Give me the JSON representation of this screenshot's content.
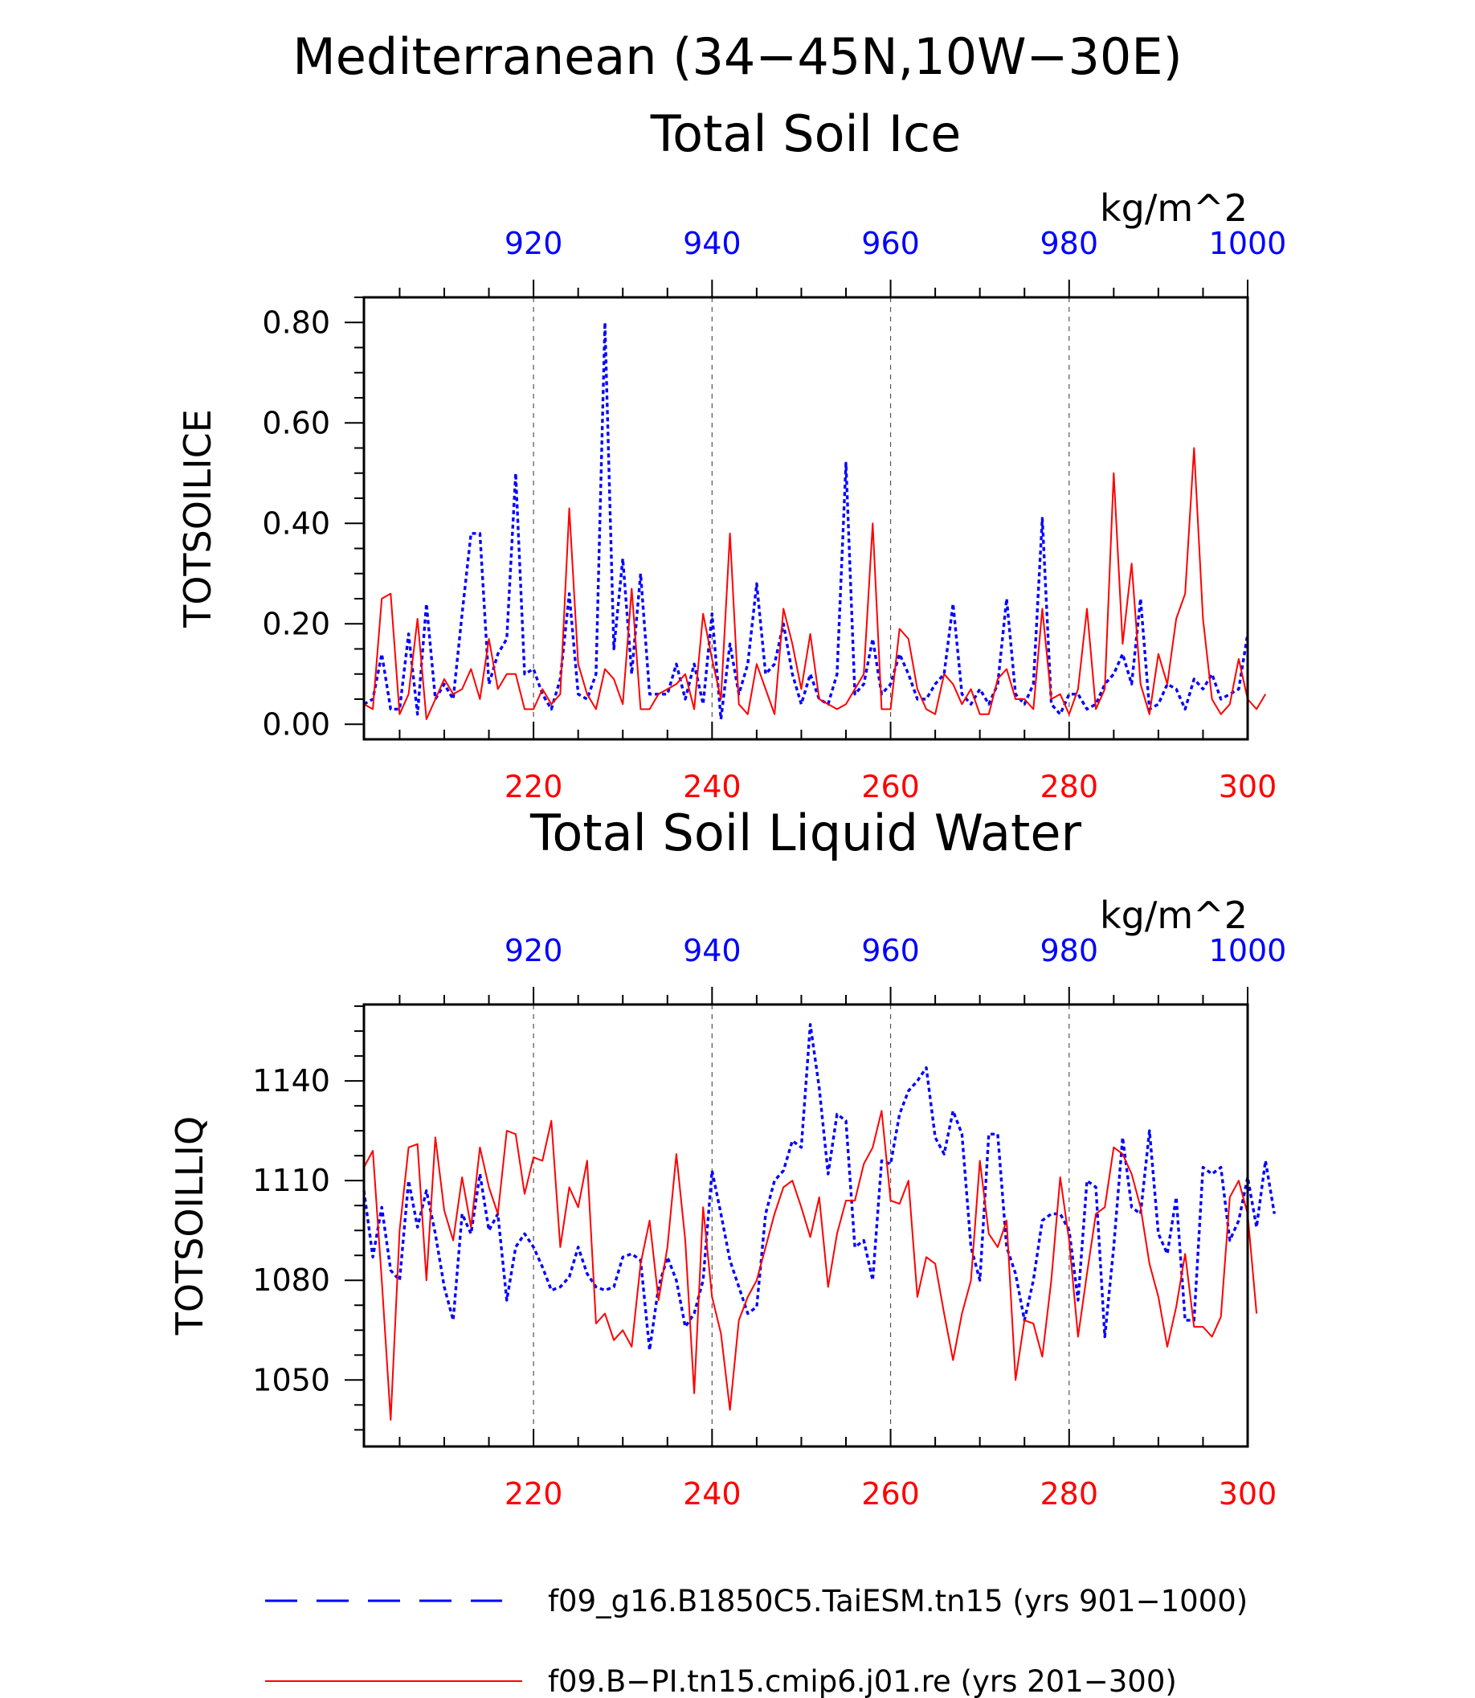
{
  "page": {
    "title_line1": "Mediterranean (34−45N,10W−30E)"
  },
  "colors": {
    "series_a": "#0000ff",
    "series_b": "#ff0000",
    "axis": "#000000",
    "grid": "#555555"
  },
  "chart_data": [
    {
      "type": "line",
      "title": "Total Soil Ice",
      "ylabel": "TOTSOILICE",
      "units": "kg/m^2",
      "ylim": [
        -0.03,
        0.85
      ],
      "yticks": [
        0.0,
        0.2,
        0.4,
        0.6,
        0.8
      ],
      "ytick_labels": [
        "0.00",
        "0.20",
        "0.40",
        "0.60",
        "0.80"
      ],
      "top_axis": {
        "color": "#0000ff",
        "range": [
          901,
          1000
        ],
        "ticks": [
          920,
          940,
          960,
          980,
          1000
        ],
        "tick_labels": [
          "920",
          "940",
          "960",
          "980",
          "1000"
        ]
      },
      "bottom_axis": {
        "color": "#ff0000",
        "range": [
          201,
          300
        ],
        "ticks": [
          220,
          240,
          260,
          280,
          300
        ],
        "tick_labels": [
          "220",
          "240",
          "260",
          "280",
          "300"
        ]
      },
      "grid": "vertical dashed at major ticks",
      "series": [
        {
          "axis": "top",
          "color": "#0000ff",
          "style": "dotted",
          "values": [
            0.04,
            0.05,
            0.14,
            0.03,
            0.03,
            0.18,
            0.02,
            0.24,
            0.05,
            0.08,
            0.05,
            0.22,
            0.38,
            0.38,
            0.08,
            0.14,
            0.17,
            0.5,
            0.1,
            0.11,
            0.06,
            0.03,
            0.09,
            0.26,
            0.06,
            0.05,
            0.1,
            0.8,
            0.15,
            0.33,
            0.1,
            0.3,
            0.06,
            0.06,
            0.06,
            0.12,
            0.05,
            0.12,
            0.04,
            0.22,
            0.01,
            0.16,
            0.06,
            0.12,
            0.28,
            0.1,
            0.12,
            0.2,
            0.1,
            0.04,
            0.1,
            0.05,
            0.04,
            0.1,
            0.52,
            0.06,
            0.08,
            0.17,
            0.06,
            0.08,
            0.14,
            0.1,
            0.05,
            0.05,
            0.08,
            0.1,
            0.24,
            0.06,
            0.04,
            0.07,
            0.04,
            0.08,
            0.25,
            0.06,
            0.04,
            0.08,
            0.41,
            0.04,
            0.02,
            0.06,
            0.06,
            0.03,
            0.04,
            0.08,
            0.1,
            0.14,
            0.08,
            0.25,
            0.03,
            0.04,
            0.08,
            0.07,
            0.03,
            0.09,
            0.07,
            0.1,
            0.05,
            0.06,
            0.07,
            0.18
          ]
        },
        {
          "axis": "bottom",
          "color": "#ff0000",
          "style": "solid",
          "values": [
            0.04,
            0.03,
            0.25,
            0.26,
            0.02,
            0.06,
            0.21,
            0.01,
            0.05,
            0.09,
            0.06,
            0.07,
            0.11,
            0.05,
            0.17,
            0.07,
            0.1,
            0.1,
            0.03,
            0.03,
            0.07,
            0.04,
            0.06,
            0.43,
            0.12,
            0.06,
            0.03,
            0.11,
            0.09,
            0.04,
            0.27,
            0.03,
            0.03,
            0.06,
            0.07,
            0.08,
            0.1,
            0.03,
            0.22,
            0.13,
            0.05,
            0.38,
            0.04,
            0.02,
            0.12,
            0.07,
            0.02,
            0.23,
            0.16,
            0.07,
            0.18,
            0.05,
            0.04,
            0.03,
            0.04,
            0.07,
            0.1,
            0.4,
            0.03,
            0.03,
            0.19,
            0.17,
            0.07,
            0.03,
            0.02,
            0.1,
            0.08,
            0.04,
            0.07,
            0.02,
            0.02,
            0.09,
            0.11,
            0.05,
            0.05,
            0.03,
            0.23,
            0.05,
            0.06,
            0.02,
            0.07,
            0.23,
            0.03,
            0.07,
            0.5,
            0.16,
            0.32,
            0.08,
            0.02,
            0.14,
            0.08,
            0.21,
            0.26,
            0.55,
            0.21,
            0.05,
            0.02,
            0.04,
            0.13,
            0.05,
            0.03,
            0.06
          ]
        }
      ]
    },
    {
      "type": "line",
      "title": "Total Soil Liquid Water",
      "ylabel": "TOTSOILLIQ",
      "units": "kg/m^2",
      "ylim": [
        1030,
        1163
      ],
      "yticks": [
        1050,
        1080,
        1110,
        1140
      ],
      "ytick_labels": [
        "1050",
        "1080",
        "1110",
        "1140"
      ],
      "top_axis": {
        "color": "#0000ff",
        "range": [
          901,
          1000
        ],
        "ticks": [
          920,
          940,
          960,
          980,
          1000
        ],
        "tick_labels": [
          "920",
          "940",
          "960",
          "980",
          "1000"
        ]
      },
      "bottom_axis": {
        "color": "#ff0000",
        "range": [
          201,
          300
        ],
        "ticks": [
          220,
          240,
          260,
          280,
          300
        ],
        "tick_labels": [
          "220",
          "240",
          "260",
          "280",
          "300"
        ]
      },
      "grid": "vertical dashed at major ticks",
      "series": [
        {
          "axis": "top",
          "color": "#0000ff",
          "style": "dotted",
          "values": [
            1107,
            1087,
            1102,
            1083,
            1080,
            1110,
            1096,
            1107,
            1094,
            1078,
            1068,
            1100,
            1094,
            1112,
            1095,
            1100,
            1074,
            1090,
            1094,
            1090,
            1084,
            1077,
            1078,
            1081,
            1090,
            1082,
            1078,
            1077,
            1078,
            1087,
            1088,
            1086,
            1059,
            1078,
            1087,
            1080,
            1066,
            1070,
            1080,
            1113,
            1100,
            1086,
            1078,
            1070,
            1072,
            1100,
            1110,
            1113,
            1122,
            1120,
            1157,
            1138,
            1112,
            1130,
            1128,
            1090,
            1092,
            1080,
            1116,
            1115,
            1130,
            1137,
            1140,
            1144,
            1123,
            1118,
            1131,
            1124,
            1090,
            1080,
            1124,
            1124,
            1090,
            1082,
            1068,
            1080,
            1098,
            1100,
            1100,
            1095,
            1074,
            1110,
            1108,
            1063,
            1090,
            1123,
            1102,
            1100,
            1125,
            1094,
            1088,
            1105,
            1068,
            1068,
            1114,
            1112,
            1114,
            1092,
            1098,
            1111,
            1096,
            1116,
            1100
          ]
        },
        {
          "axis": "bottom",
          "color": "#ff0000",
          "style": "solid",
          "values": [
            1114,
            1119,
            1080,
            1038,
            1095,
            1120,
            1121,
            1080,
            1123,
            1101,
            1092,
            1111,
            1096,
            1120,
            1108,
            1100,
            1125,
            1124,
            1106,
            1117,
            1116,
            1128,
            1090,
            1108,
            1102,
            1116,
            1067,
            1070,
            1062,
            1065,
            1060,
            1085,
            1098,
            1074,
            1090,
            1118,
            1092,
            1046,
            1102,
            1075,
            1064,
            1041,
            1068,
            1075,
            1080,
            1090,
            1100,
            1108,
            1110,
            1102,
            1093,
            1105,
            1078,
            1094,
            1104,
            1104,
            1115,
            1120,
            1131,
            1104,
            1103,
            1110,
            1075,
            1087,
            1085,
            1070,
            1056,
            1070,
            1080,
            1116,
            1094,
            1090,
            1098,
            1050,
            1068,
            1067,
            1057,
            1080,
            1111,
            1092,
            1063,
            1082,
            1100,
            1102,
            1120,
            1118,
            1112,
            1102,
            1085,
            1075,
            1060,
            1072,
            1088,
            1066,
            1066,
            1063,
            1069,
            1105,
            1110,
            1100,
            1070
          ]
        }
      ]
    }
  ],
  "legend": [
    {
      "label": "f09_g16.B1850C5.TaiESM.tn15 (yrs 901−1000)",
      "color": "#0000ff",
      "style": "dashed"
    },
    {
      "label": "f09.B−PI.tn15.cmip6.j01.re (yrs 201−300)",
      "color": "#ff0000",
      "style": "solid"
    }
  ]
}
